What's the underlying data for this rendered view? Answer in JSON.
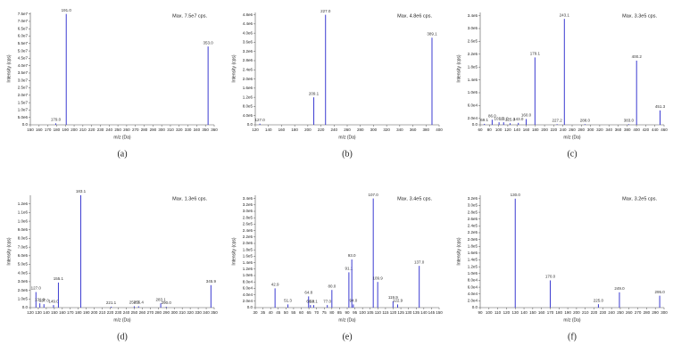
{
  "chart_data": [
    {
      "type": "bar",
      "caption": "(a)",
      "title": "Max. 7.5e7 cps.",
      "x_label": "m/z (Da)",
      "y_label": "Intensity (cps)",
      "color": "#3b3bd1",
      "x": [
        179.0,
        191.0,
        353.0
      ],
      "peak_labels": [
        "179.0",
        "191.0",
        "353.0"
      ],
      "values": [
        1000000,
        75000000,
        53000000
      ],
      "xlim": [
        150,
        360
      ],
      "xticks": [
        150,
        160,
        170,
        180,
        190,
        200,
        210,
        220,
        230,
        240,
        250,
        260,
        270,
        280,
        290,
        300,
        310,
        320,
        330,
        340,
        350,
        360
      ],
      "ylim": [
        0,
        76000000
      ],
      "yticks": [
        {
          "value": 0,
          "label": "0.0"
        },
        {
          "value": 5000000,
          "label": "5.0e6"
        },
        {
          "value": 10000000,
          "label": "1.0e7"
        },
        {
          "value": 15000000,
          "label": "1.5e7"
        },
        {
          "value": 20000000,
          "label": "2.0e7"
        },
        {
          "value": 25000000,
          "label": "2.5e7"
        },
        {
          "value": 30000000,
          "label": "3.0e7"
        },
        {
          "value": 35000000,
          "label": "3.5e7"
        },
        {
          "value": 40000000,
          "label": "4.0e7"
        },
        {
          "value": 45000000,
          "label": "4.5e7"
        },
        {
          "value": 50000000,
          "label": "5.0e7"
        },
        {
          "value": 55000000,
          "label": "5.5e7"
        },
        {
          "value": 60000000,
          "label": "6.0e7"
        },
        {
          "value": 65000000,
          "label": "6.5e7"
        },
        {
          "value": 70000000,
          "label": "7.0e7"
        },
        {
          "value": 75000000,
          "label": "7.5e7"
        }
      ]
    },
    {
      "type": "bar",
      "caption": "(b)",
      "title": "Max. 4.8e6 cps.",
      "x_label": "m/z (Da)",
      "y_label": "Intensity (cps)",
      "color": "#3b3bd1",
      "x": [
        127.0,
        209.1,
        227.0,
        389.1
      ],
      "peak_labels": [
        "127.0",
        "209.1",
        "227.0",
        "389.1"
      ],
      "values": [
        50000,
        1200000,
        4800000,
        3800000
      ],
      "xlim": [
        120,
        400
      ],
      "xticks": [
        120,
        140,
        160,
        180,
        200,
        220,
        240,
        260,
        280,
        300,
        320,
        340,
        360,
        380,
        400
      ],
      "ylim": [
        0,
        4900000
      ],
      "yticks": [
        {
          "value": 0,
          "label": "0.0"
        },
        {
          "value": 400000,
          "label": "4.0e5"
        },
        {
          "value": 800000,
          "label": "8.0e5"
        },
        {
          "value": 1200000,
          "label": "1.2e6"
        },
        {
          "value": 1600000,
          "label": "1.6e6"
        },
        {
          "value": 2000000,
          "label": "2.0e6"
        },
        {
          "value": 2400000,
          "label": "2.4e6"
        },
        {
          "value": 2800000,
          "label": "2.8e6"
        },
        {
          "value": 3200000,
          "label": "3.2e6"
        },
        {
          "value": 3600000,
          "label": "3.6e6"
        },
        {
          "value": 4000000,
          "label": "4.0e6"
        },
        {
          "value": 4400000,
          "label": "4.4e6"
        },
        {
          "value": 4800000,
          "label": "4.8e6"
        }
      ]
    },
    {
      "type": "bar",
      "caption": "(c)",
      "title": "Max. 3.3e5 cps.",
      "x_label": "m/z (Da)",
      "y_label": "Intensity (cps)",
      "color": "#3b3bd1",
      "x": [
        69.1,
        86.0,
        101.0,
        111.0,
        125.0,
        143.0,
        160.0,
        179.1,
        227.2,
        243.1,
        288.0,
        383.0,
        400.2,
        451.3
      ],
      "peak_labels": [
        "69.1",
        "86.0",
        "101.0",
        "111.0",
        "125.0",
        "143.0",
        "160.0",
        "179.1",
        "227.2",
        "243.1",
        "288.0",
        "383.0",
        "400.2",
        "451.3"
      ],
      "values": [
        3000,
        16000,
        8000,
        8000,
        5000,
        6000,
        18000,
        210000,
        2000,
        330000,
        2000,
        2000,
        200000,
        45000
      ],
      "xlim": [
        60,
        460
      ],
      "xticks": [
        60,
        80,
        100,
        120,
        140,
        160,
        180,
        200,
        220,
        240,
        260,
        280,
        300,
        320,
        340,
        360,
        380,
        400,
        420,
        440,
        460
      ],
      "ylim": [
        0,
        350000
      ],
      "yticks": [
        {
          "value": 0,
          "label": "0.0"
        },
        {
          "value": 20000,
          "label": "2.0e4"
        },
        {
          "value": 60000,
          "label": "6.0e4"
        },
        {
          "value": 100000,
          "label": "1.0e5"
        },
        {
          "value": 140000,
          "label": "1.4e5"
        },
        {
          "value": 180000,
          "label": "1.8e5"
        },
        {
          "value": 220000,
          "label": "2.2e5"
        },
        {
          "value": 260000,
          "label": "2.6e5"
        },
        {
          "value": 300000,
          "label": "3.0e5"
        },
        {
          "value": 340000,
          "label": "3.4e5"
        }
      ]
    },
    {
      "type": "bar",
      "caption": "(d)",
      "title": "Max. 1.3e6 cps.",
      "x_label": "m/z (Da)",
      "y_label": "Intensity (cps)",
      "color": "#3b3bd1",
      "x": [
        127.0,
        131.9,
        137.0,
        149.0,
        155.1,
        183.1,
        221.1,
        250.0,
        255.4,
        283.1,
        290.0,
        345.9
      ],
      "peak_labels": [
        "127.0",
        "131.9",
        "137.0",
        "149.0",
        "155.1",
        "183.1",
        "221.1",
        "250.0",
        "255.4",
        "283.1",
        "290.0",
        "345.9"
      ],
      "values": [
        180000,
        50000,
        40000,
        30000,
        290000,
        1300000,
        10000,
        15000,
        15000,
        50000,
        10000,
        260000
      ],
      "xlim": [
        120,
        350
      ],
      "xticks": [
        120,
        130,
        140,
        150,
        160,
        170,
        180,
        190,
        200,
        210,
        220,
        230,
        240,
        250,
        260,
        270,
        280,
        290,
        300,
        310,
        320,
        330,
        340,
        350
      ],
      "ylim": [
        0,
        1300000
      ],
      "yticks": [
        {
          "value": 0,
          "label": "0.0"
        },
        {
          "value": 100000,
          "label": "1.0e5"
        },
        {
          "value": 200000,
          "label": "2.0e5"
        },
        {
          "value": 300000,
          "label": "3.0e5"
        },
        {
          "value": 400000,
          "label": "4.0e5"
        },
        {
          "value": 500000,
          "label": "5.0e5"
        },
        {
          "value": 600000,
          "label": "6.0e5"
        },
        {
          "value": 700000,
          "label": "7.0e5"
        },
        {
          "value": 800000,
          "label": "8.0e5"
        },
        {
          "value": 900000,
          "label": "9.0e5"
        },
        {
          "value": 1000000,
          "label": "1.0e6"
        },
        {
          "value": 1100000,
          "label": "1.1e6"
        },
        {
          "value": 1200000,
          "label": "1.2e6"
        }
      ]
    },
    {
      "type": "bar",
      "caption": "(e)",
      "title": "Max. 3.4e5 cps.",
      "x_label": "m/z (Da)",
      "y_label": "Intensity (cps)",
      "color": "#3b3bd1",
      "x": [
        42.9,
        51.3,
        64.8,
        66.0,
        68.1,
        77.0,
        80.0,
        91.1,
        93.0,
        94.0,
        107.0,
        109.9,
        119.9,
        122.9,
        137.0
      ],
      "peak_labels": [
        "42.9",
        "51.3",
        "64.8",
        "66.0",
        "68.1",
        "77.0",
        "80.0",
        "91.1",
        "93.0",
        "94.0",
        "107.0",
        "109.9",
        "119.9",
        "122.9",
        "137.0"
      ],
      "values": [
        60000,
        10000,
        35000,
        8000,
        8000,
        8000,
        55000,
        110000,
        150000,
        10000,
        340000,
        80000,
        20000,
        10000,
        130000
      ],
      "xlim": [
        30,
        150
      ],
      "xticks": [
        30,
        35,
        40,
        45,
        50,
        55,
        60,
        65,
        70,
        75,
        80,
        85,
        90,
        95,
        100,
        105,
        110,
        115,
        120,
        125,
        130,
        135,
        140,
        145,
        150
      ],
      "ylim": [
        0,
        350000
      ],
      "yticks": [
        {
          "value": 0,
          "label": "0.0"
        },
        {
          "value": 20000,
          "label": "2.0e4"
        },
        {
          "value": 40000,
          "label": "4.0e4"
        },
        {
          "value": 60000,
          "label": "6.0e4"
        },
        {
          "value": 80000,
          "label": "8.0e4"
        },
        {
          "value": 100000,
          "label": "1.0e5"
        },
        {
          "value": 120000,
          "label": "1.2e5"
        },
        {
          "value": 140000,
          "label": "1.4e5"
        },
        {
          "value": 160000,
          "label": "1.6e5"
        },
        {
          "value": 180000,
          "label": "1.8e5"
        },
        {
          "value": 200000,
          "label": "2.0e5"
        },
        {
          "value": 220000,
          "label": "2.2e5"
        },
        {
          "value": 240000,
          "label": "2.4e5"
        },
        {
          "value": 260000,
          "label": "2.6e5"
        },
        {
          "value": 280000,
          "label": "2.8e5"
        },
        {
          "value": 300000,
          "label": "3.0e5"
        },
        {
          "value": 320000,
          "label": "3.2e5"
        },
        {
          "value": 340000,
          "label": "3.4e5"
        }
      ]
    },
    {
      "type": "bar",
      "caption": "(f)",
      "title": "Max. 3.2e5 cps.",
      "x_label": "m/z (Da)",
      "y_label": "Intensity (cps)",
      "color": "#3b3bd1",
      "x": [
        130.0,
        170.0,
        225.0,
        249.0,
        295.0
      ],
      "peak_labels": [
        "130.0",
        "170.0",
        "225.0",
        "249.0",
        "295.0"
      ],
      "values": [
        320000,
        80000,
        10000,
        45000,
        35000
      ],
      "xlim": [
        90,
        300
      ],
      "xticks": [
        90,
        100,
        110,
        120,
        130,
        140,
        150,
        160,
        170,
        180,
        190,
        200,
        210,
        220,
        230,
        240,
        250,
        260,
        270,
        280,
        290,
        300
      ],
      "ylim": [
        0,
        330000
      ],
      "yticks": [
        {
          "value": 0,
          "label": "0.0"
        },
        {
          "value": 20000,
          "label": "2.0e4"
        },
        {
          "value": 40000,
          "label": "4.0e4"
        },
        {
          "value": 60000,
          "label": "6.0e4"
        },
        {
          "value": 80000,
          "label": "8.0e4"
        },
        {
          "value": 100000,
          "label": "1.0e5"
        },
        {
          "value": 120000,
          "label": "1.2e5"
        },
        {
          "value": 140000,
          "label": "1.4e5"
        },
        {
          "value": 160000,
          "label": "1.6e5"
        },
        {
          "value": 180000,
          "label": "1.8e5"
        },
        {
          "value": 200000,
          "label": "2.0e5"
        },
        {
          "value": 220000,
          "label": "2.2e5"
        },
        {
          "value": 240000,
          "label": "2.4e5"
        },
        {
          "value": 260000,
          "label": "2.6e5"
        },
        {
          "value": 280000,
          "label": "2.8e5"
        },
        {
          "value": 300000,
          "label": "3.0e5"
        },
        {
          "value": 320000,
          "label": "3.2e5"
        }
      ]
    }
  ]
}
